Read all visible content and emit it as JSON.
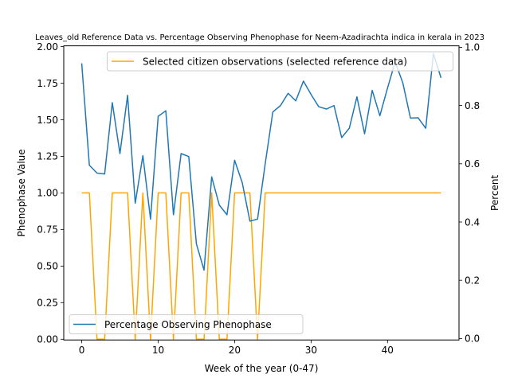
{
  "chart_data": {
    "type": "line",
    "title": "Leaves_old Reference Data vs. Percentage Observing Phenophase for Neem-Azadirachta indica in kerala in 2023",
    "xlabel": "Week of the year (0-47)",
    "ylabel_left": "Phenophase Value",
    "ylabel_right": "Percent",
    "xlim": [
      -2.35,
      49.35
    ],
    "ylim_left": [
      -0.005,
      2.005
    ],
    "ylim_right": [
      -0.005,
      1.005
    ],
    "x_ticks": [
      0,
      10,
      20,
      30,
      40
    ],
    "x_tick_labels": [
      "0",
      "10",
      "20",
      "30",
      "40"
    ],
    "y_left_ticks": [
      0,
      0.25,
      0.5,
      0.75,
      1.0,
      1.25,
      1.5,
      1.75,
      2.0
    ],
    "y_left_tick_labels": [
      "0.00",
      "0.25",
      "0.50",
      "0.75",
      "1.00",
      "1.25",
      "1.50",
      "1.75",
      "2.00"
    ],
    "y_right_ticks": [
      0,
      0.2,
      0.4,
      0.6,
      0.8,
      1.0
    ],
    "y_right_tick_labels": [
      "0.0",
      "0.2",
      "0.4",
      "0.6",
      "0.8",
      "1.0"
    ],
    "series": [
      {
        "name": "Selected citizen observations (selected reference data)",
        "axis": "left",
        "color": "#ffa500",
        "x": [
          0,
          1,
          2,
          3,
          4,
          5,
          6,
          7,
          8,
          9,
          10,
          11,
          12,
          13,
          14,
          15,
          16,
          17,
          18,
          19,
          20,
          21,
          22,
          23,
          24,
          25,
          26,
          27,
          28,
          29,
          30,
          31,
          32,
          33,
          34,
          35,
          36,
          37,
          38,
          39,
          40,
          41,
          42,
          43,
          44,
          45,
          46,
          47
        ],
        "y": [
          1,
          1,
          0,
          0,
          1,
          1,
          1,
          0,
          1,
          0,
          1,
          1,
          0,
          1,
          1,
          0,
          0,
          1,
          0,
          0,
          1,
          1,
          1,
          0,
          1,
          1,
          1,
          1,
          1,
          1,
          1,
          1,
          1,
          1,
          1,
          1,
          1,
          1,
          1,
          1,
          1,
          1,
          1,
          1,
          1,
          1,
          1,
          1
        ]
      },
      {
        "name": "Percentage Observing Phenophase",
        "axis": "right",
        "color": "#1f77b4",
        "x": [
          0,
          1,
          2,
          3,
          4,
          5,
          6,
          7,
          8,
          9,
          10,
          11,
          12,
          13,
          14,
          15,
          16,
          17,
          18,
          19,
          20,
          21,
          22,
          23,
          24,
          25,
          26,
          27,
          28,
          29,
          30,
          31,
          32,
          33,
          34,
          35,
          36,
          37,
          38,
          39,
          40,
          41,
          42,
          43,
          44,
          45,
          46,
          47
        ],
        "y": [
          0.945,
          0.595,
          0.568,
          0.565,
          0.81,
          0.635,
          0.835,
          0.465,
          0.628,
          0.41,
          0.763,
          0.782,
          0.425,
          0.635,
          0.625,
          0.325,
          0.235,
          0.555,
          0.458,
          0.425,
          0.612,
          0.535,
          0.403,
          0.41,
          0.6,
          0.778,
          0.8,
          0.842,
          0.816,
          0.884,
          0.838,
          0.796,
          0.788,
          0.8,
          0.69,
          0.722,
          0.83,
          0.703,
          0.852,
          0.765,
          0.86,
          0.95,
          0.878,
          0.757,
          0.758,
          0.722,
          0.978,
          0.895
        ]
      }
    ],
    "legend_top": {
      "placement": "upper-right",
      "entries": [
        "Selected citizen observations (selected reference data)"
      ]
    },
    "legend_bottom": {
      "placement": "lower-left",
      "entries": [
        "Percentage Observing Phenophase"
      ]
    },
    "grid": false
  }
}
